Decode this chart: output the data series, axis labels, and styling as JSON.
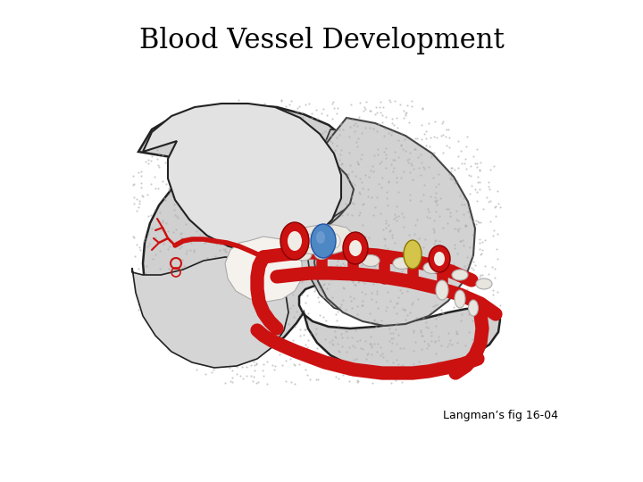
{
  "title": "Blood Vessel Development",
  "caption": "Langman’s fig 16-04",
  "bg": "#ffffff",
  "title_fontsize": 22,
  "title_fontweight": "normal",
  "caption_fontsize": 9,
  "embryo_body_color": "#d0d0d0",
  "embryo_body_edge": "#222222",
  "head_bump_color": "#e0e0e0",
  "aorta_color": "#cc1111",
  "aorta_lw": 11,
  "blue_color": "#4d88c4",
  "yellow_color": "#d4c44a",
  "white_cartilage": "#e8e5de",
  "vessel_tree_color": "#cc1111"
}
